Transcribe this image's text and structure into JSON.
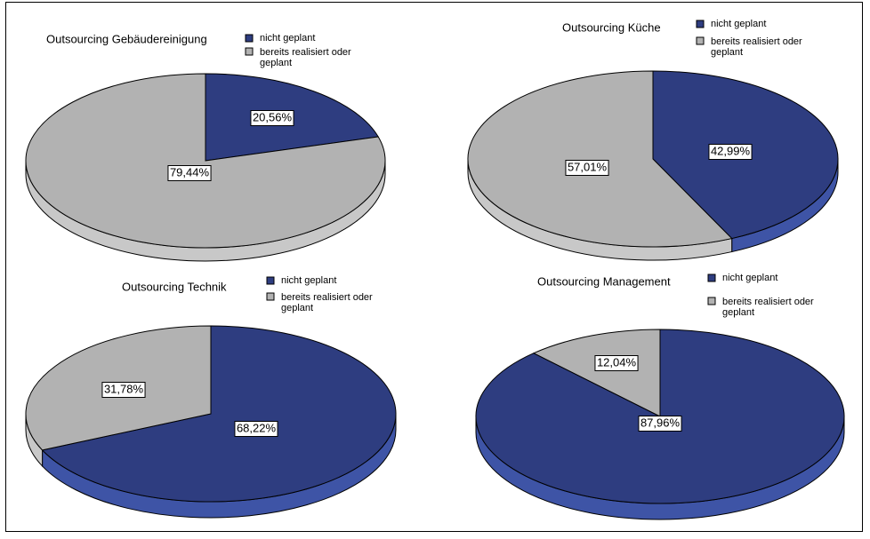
{
  "colors": {
    "nicht_geplant": "#2E3D80",
    "nicht_geplant_side": "#3E54A6",
    "bereits": "#B2B2B2",
    "bereits_side": "#C8C8C8",
    "frame": "#000000"
  },
  "chart_data": [
    {
      "type": "pie",
      "title": "Outsourcing Gebäudereinigung",
      "legend": [
        "nicht geplant",
        "bereits realisiert oder geplant"
      ],
      "slices": [
        {
          "label": "nicht geplant",
          "value": 20.56,
          "display": "20,56%"
        },
        {
          "label": "bereits realisiert oder geplant",
          "value": 79.44,
          "display": "79,44%"
        }
      ]
    },
    {
      "type": "pie",
      "title": "Outsourcing Küche",
      "legend": [
        "nicht geplant",
        "bereits realisiert oder geplant"
      ],
      "slices": [
        {
          "label": "nicht geplant",
          "value": 42.99,
          "display": "42,99%"
        },
        {
          "label": "bereits realisiert oder geplant",
          "value": 57.01,
          "display": "57,01%"
        }
      ]
    },
    {
      "type": "pie",
      "title": "Outsourcing Technik",
      "legend": [
        "nicht geplant",
        "bereits realisiert oder geplant"
      ],
      "slices": [
        {
          "label": "nicht geplant",
          "value": 68.22,
          "display": "68,22%"
        },
        {
          "label": "bereits realisiert oder geplant",
          "value": 31.78,
          "display": "31,78%"
        }
      ]
    },
    {
      "type": "pie",
      "title": "Outsourcing Management",
      "legend": [
        "nicht geplant",
        "bereits realisiert oder geplant"
      ],
      "slices": [
        {
          "label": "nicht geplant",
          "value": 87.96,
          "display": "87,96%"
        },
        {
          "label": "bereits realisiert oder geplant",
          "value": 12.04,
          "display": "12,04%"
        }
      ]
    }
  ]
}
